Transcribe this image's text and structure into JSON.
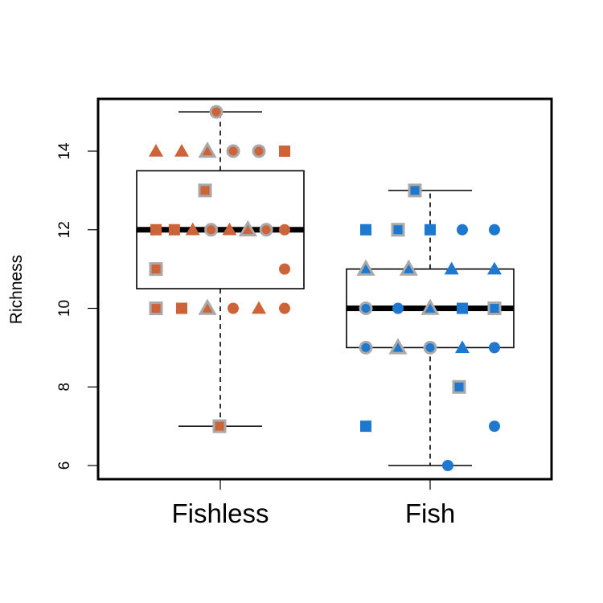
{
  "chart_data": {
    "type": "boxplot",
    "ylabel": "Richness",
    "xlabel": "",
    "title": "",
    "ylim": [
      5.8,
      15.3
    ],
    "yticks": [
      6,
      8,
      10,
      12,
      14
    ],
    "categories": [
      "Fishless",
      "Fish"
    ],
    "colors": {
      "Fishless": "#CD6439",
      "Fish": "#1E78CF",
      "outline": "#A9A9A9"
    },
    "boxes": [
      {
        "category": "Fishless",
        "whisker_low": 7,
        "q1": 10.5,
        "median": 12,
        "q3": 13.5,
        "whisker_high": 15
      },
      {
        "category": "Fish",
        "whisker_low": 6,
        "q1": 9,
        "median": 10,
        "q3": 11,
        "whisker_high": 13
      }
    ],
    "points": [
      {
        "group": "Fishless",
        "y": 14,
        "shape": "triangle",
        "outlined": false
      },
      {
        "group": "Fishless",
        "y": 14,
        "shape": "triangle",
        "outlined": false
      },
      {
        "group": "Fishless",
        "y": 14,
        "shape": "triangle",
        "outlined": true
      },
      {
        "group": "Fishless",
        "y": 14,
        "shape": "circle",
        "outlined": true
      },
      {
        "group": "Fishless",
        "y": 14,
        "shape": "circle",
        "outlined": true
      },
      {
        "group": "Fishless",
        "y": 14,
        "shape": "square",
        "outlined": false
      },
      {
        "group": "Fishless",
        "y": 15,
        "shape": "circle",
        "outlined": true
      },
      {
        "group": "Fishless",
        "y": 13,
        "shape": "square",
        "outlined": true
      },
      {
        "group": "Fishless",
        "y": 12,
        "shape": "square",
        "outlined": false
      },
      {
        "group": "Fishless",
        "y": 12,
        "shape": "square",
        "outlined": false
      },
      {
        "group": "Fishless",
        "y": 12,
        "shape": "triangle",
        "outlined": false
      },
      {
        "group": "Fishless",
        "y": 12,
        "shape": "circle",
        "outlined": true
      },
      {
        "group": "Fishless",
        "y": 12,
        "shape": "triangle",
        "outlined": false
      },
      {
        "group": "Fishless",
        "y": 12,
        "shape": "triangle",
        "outlined": true
      },
      {
        "group": "Fishless",
        "y": 12,
        "shape": "circle",
        "outlined": true
      },
      {
        "group": "Fishless",
        "y": 12,
        "shape": "circle",
        "outlined": false
      },
      {
        "group": "Fishless",
        "y": 11,
        "shape": "square",
        "outlined": true
      },
      {
        "group": "Fishless",
        "y": 11,
        "shape": "circle",
        "outlined": false
      },
      {
        "group": "Fishless",
        "y": 10,
        "shape": "square",
        "outlined": true
      },
      {
        "group": "Fishless",
        "y": 10,
        "shape": "square",
        "outlined": false
      },
      {
        "group": "Fishless",
        "y": 10,
        "shape": "triangle",
        "outlined": true
      },
      {
        "group": "Fishless",
        "y": 10,
        "shape": "circle",
        "outlined": false
      },
      {
        "group": "Fishless",
        "y": 10,
        "shape": "triangle",
        "outlined": false
      },
      {
        "group": "Fishless",
        "y": 10,
        "shape": "circle",
        "outlined": false
      },
      {
        "group": "Fishless",
        "y": 7,
        "shape": "square",
        "outlined": true
      },
      {
        "group": "Fish",
        "y": 13,
        "shape": "square",
        "outlined": true
      },
      {
        "group": "Fish",
        "y": 12,
        "shape": "square",
        "outlined": false
      },
      {
        "group": "Fish",
        "y": 12,
        "shape": "square",
        "outlined": true
      },
      {
        "group": "Fish",
        "y": 12,
        "shape": "square",
        "outlined": false
      },
      {
        "group": "Fish",
        "y": 12,
        "shape": "circle",
        "outlined": false
      },
      {
        "group": "Fish",
        "y": 12,
        "shape": "circle",
        "outlined": false
      },
      {
        "group": "Fish",
        "y": 11,
        "shape": "triangle",
        "outlined": true
      },
      {
        "group": "Fish",
        "y": 11,
        "shape": "triangle",
        "outlined": true
      },
      {
        "group": "Fish",
        "y": 11,
        "shape": "triangle",
        "outlined": false
      },
      {
        "group": "Fish",
        "y": 11,
        "shape": "triangle",
        "outlined": false
      },
      {
        "group": "Fish",
        "y": 10,
        "shape": "circle",
        "outlined": true
      },
      {
        "group": "Fish",
        "y": 10,
        "shape": "circle",
        "outlined": false
      },
      {
        "group": "Fish",
        "y": 10,
        "shape": "triangle",
        "outlined": true
      },
      {
        "group": "Fish",
        "y": 10,
        "shape": "square",
        "outlined": false
      },
      {
        "group": "Fish",
        "y": 10,
        "shape": "square",
        "outlined": true
      },
      {
        "group": "Fish",
        "y": 9,
        "shape": "circle",
        "outlined": true
      },
      {
        "group": "Fish",
        "y": 9,
        "shape": "triangle",
        "outlined": true
      },
      {
        "group": "Fish",
        "y": 9,
        "shape": "circle",
        "outlined": true
      },
      {
        "group": "Fish",
        "y": 9,
        "shape": "triangle",
        "outlined": false
      },
      {
        "group": "Fish",
        "y": 9,
        "shape": "circle",
        "outlined": false
      },
      {
        "group": "Fish",
        "y": 8,
        "shape": "square",
        "outlined": true
      },
      {
        "group": "Fish",
        "y": 7,
        "shape": "square",
        "outlined": false
      },
      {
        "group": "Fish",
        "y": 7,
        "shape": "circle",
        "outlined": false
      },
      {
        "group": "Fish",
        "y": 6,
        "shape": "circle",
        "outlined": false
      }
    ],
    "grid": false,
    "legend": "none"
  }
}
